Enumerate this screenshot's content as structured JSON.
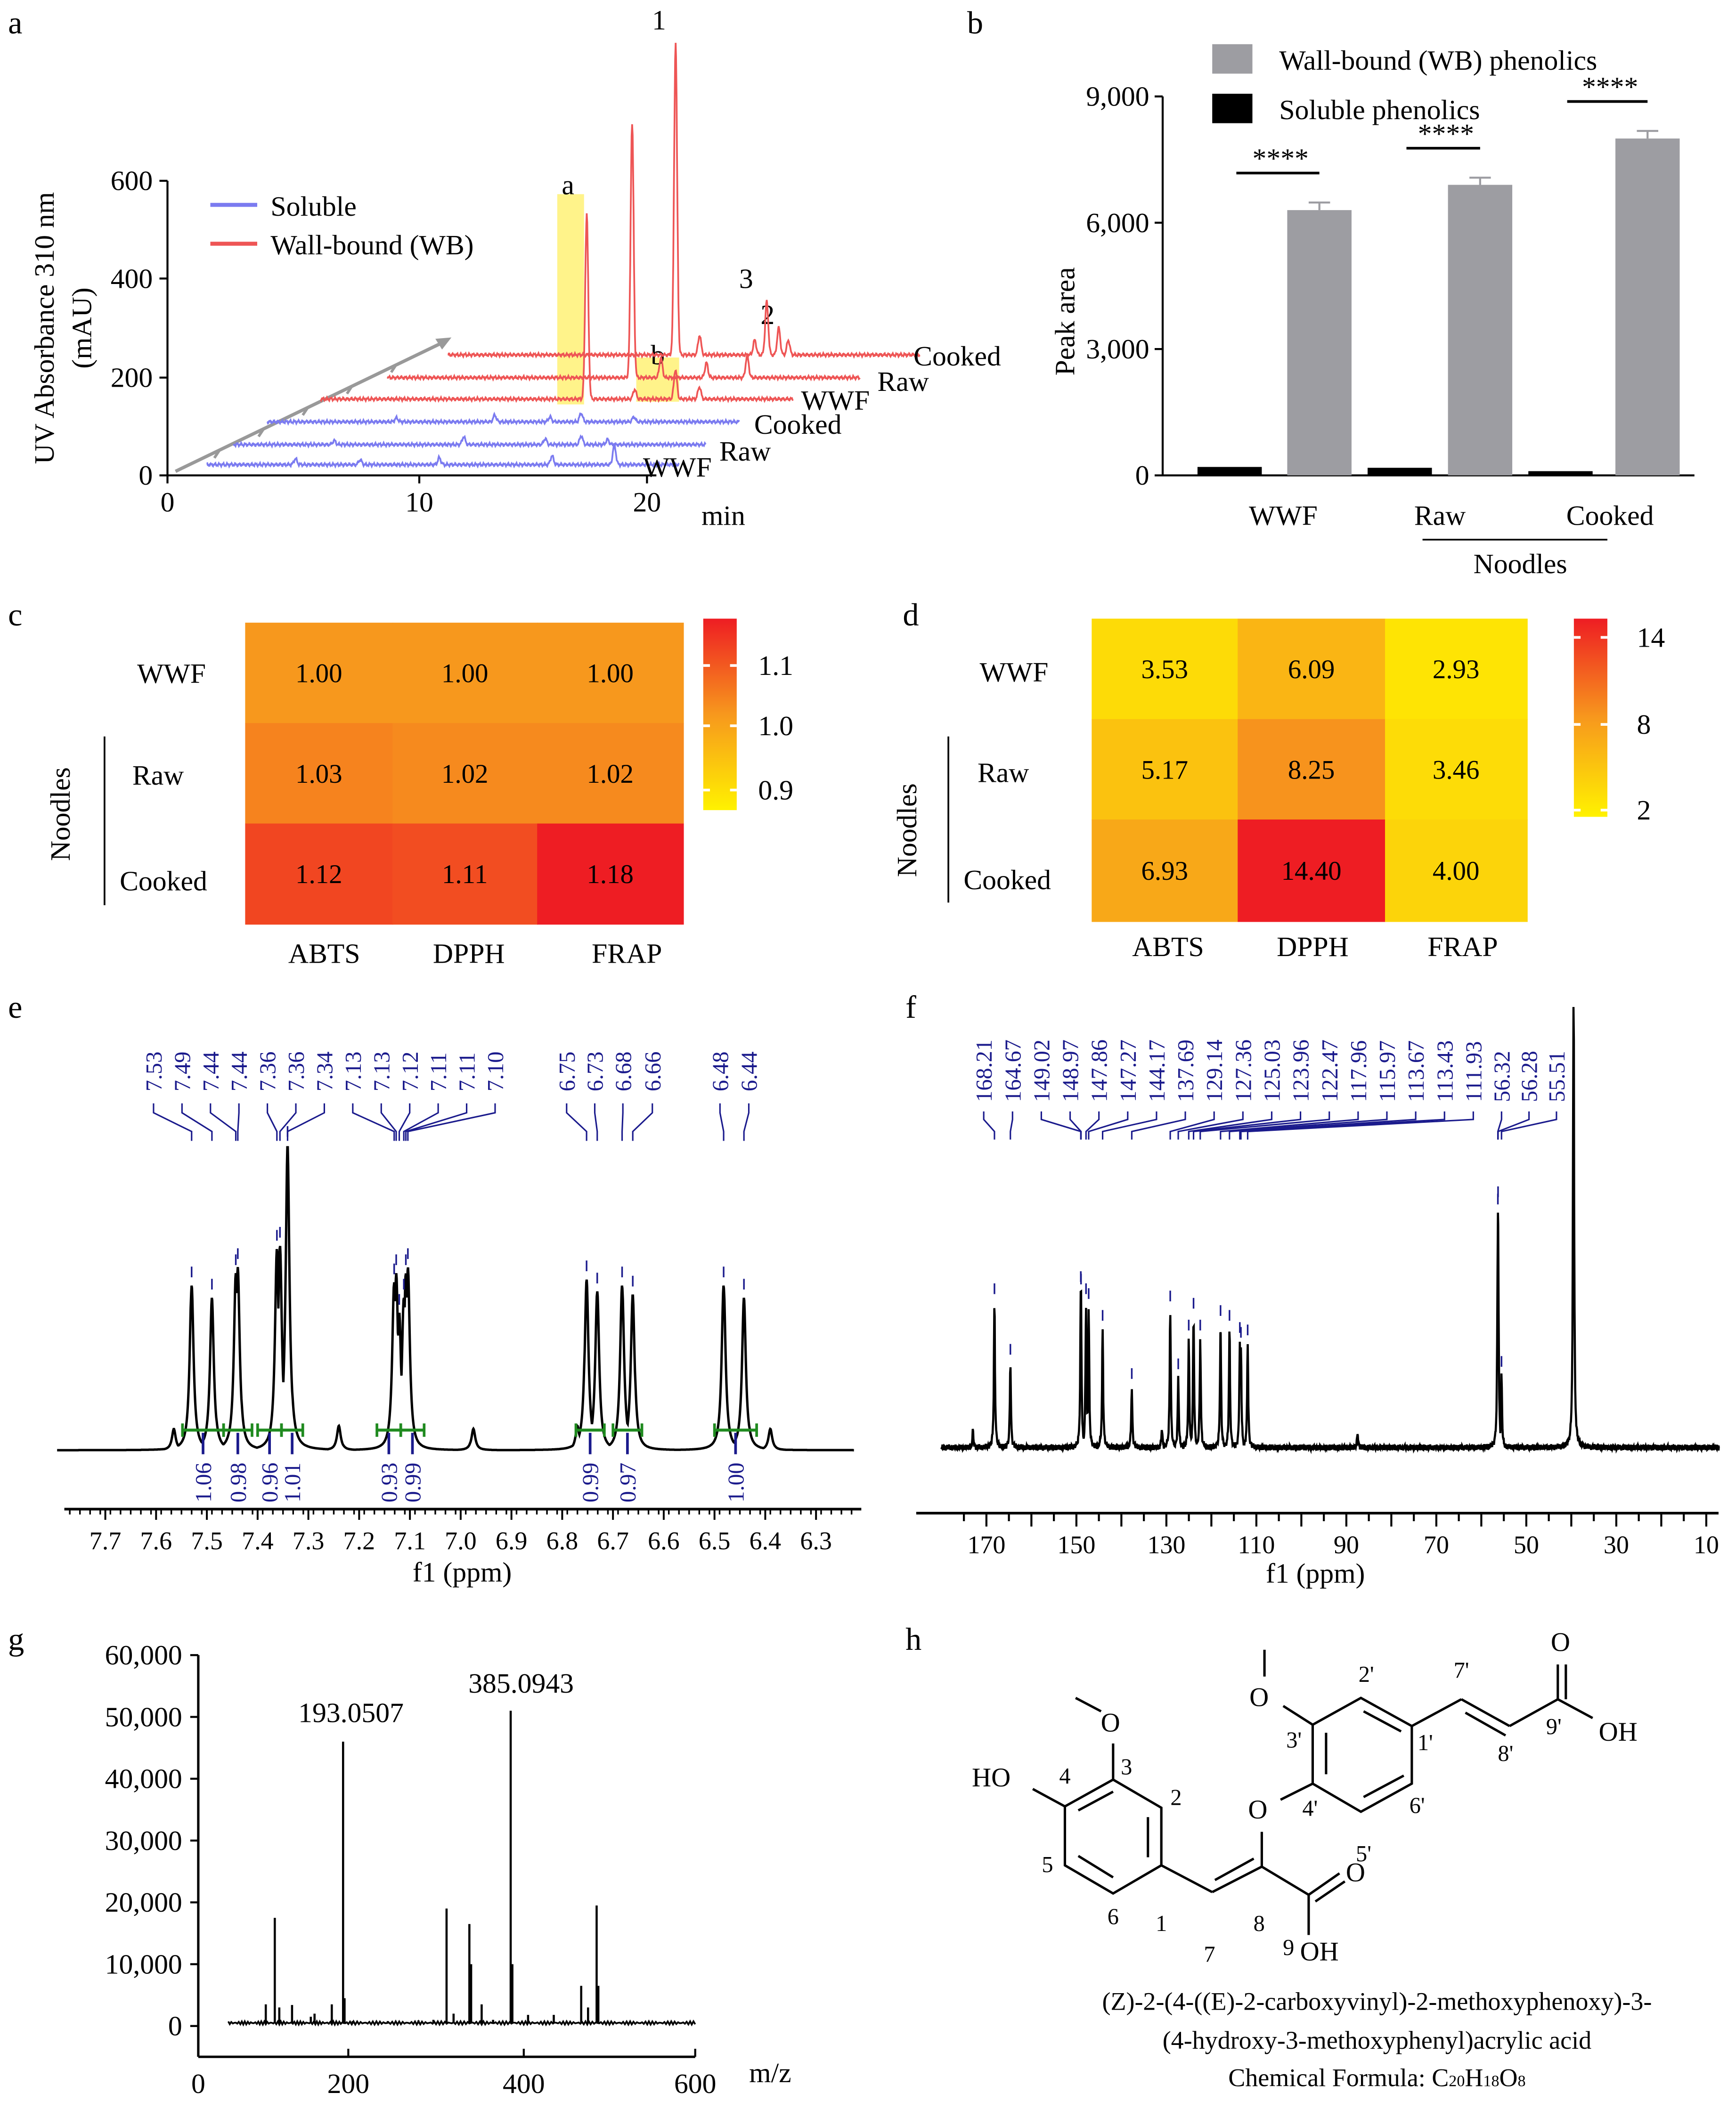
{
  "panel_labels": {
    "a": "a",
    "b": "b",
    "c": "c",
    "d": "d",
    "e": "e",
    "f": "f",
    "g": "g",
    "h": "h"
  },
  "chart_data": [
    {
      "id": "a",
      "type": "line",
      "ylabel_line1": "UV Absorbance 310 nm",
      "ylabel_line2": "(mAU)",
      "xlabel": "min",
      "yticks": [
        "0",
        "200",
        "400",
        "600"
      ],
      "xticks": [
        "0",
        "10",
        "20"
      ],
      "ylim": [
        0,
        600
      ],
      "legend": [
        {
          "name": "Soluble",
          "color": "#7b7bf0"
        },
        {
          "name": "Wall-bound (WB)",
          "color": "#ee5555"
        }
      ],
      "legend_position": "top-left",
      "series": [
        {
          "group": "Soluble",
          "label": "WWF",
          "peaks": [
            [
              4.5,
              12
            ],
            [
              7.2,
              10
            ],
            [
              10.5,
              14
            ],
            [
              15.2,
              18
            ],
            [
              17.8,
              40
            ]
          ]
        },
        {
          "group": "Soluble",
          "label": "Raw",
          "peaks": [
            [
              5.0,
              8
            ],
            [
              10.4,
              16
            ],
            [
              13.8,
              12
            ],
            [
              15.3,
              18
            ],
            [
              16.4,
              10
            ]
          ]
        },
        {
          "group": "Soluble",
          "label": "Cooked",
          "peaks": [
            [
              6.2,
              8
            ],
            [
              10.3,
              14
            ],
            [
              12.6,
              10
            ],
            [
              13.9,
              18
            ],
            [
              16.1,
              10
            ]
          ]
        },
        {
          "group": "Wall-bound (WB)",
          "label": "WWF",
          "peaks": [
            [
              11.9,
              376
            ],
            [
              13.9,
              20
            ],
            [
              15.6,
              60
            ],
            [
              16.6,
              25
            ]
          ]
        },
        {
          "group": "Wall-bound (WB)",
          "label": "Raw",
          "peaks": [
            [
              11.0,
              518
            ],
            [
              12.2,
              40
            ],
            [
              14.1,
              30
            ],
            [
              15.8,
              45
            ]
          ]
        },
        {
          "group": "Wall-bound (WB)",
          "label": "Cooked",
          "peaks": [
            [
              10.3,
              635
            ],
            [
              11.3,
              40
            ],
            [
              13.6,
              30
            ],
            [
              14.1,
              109
            ],
            [
              14.6,
              55
            ],
            [
              15.0,
              30
            ]
          ]
        }
      ],
      "annotations": [
        "1",
        "a",
        "b",
        "3",
        "2"
      ],
      "highlight_color": "#fff176"
    },
    {
      "id": "b",
      "type": "bar",
      "ylabel": "Peak area",
      "categories": [
        "WWF",
        "Raw",
        "Cooked"
      ],
      "group_label": "Noodles",
      "ylim": [
        0,
        9000
      ],
      "yticks": [
        "0",
        "3,000",
        "6,000",
        "9,000"
      ],
      "ytick_values": [
        0,
        3000,
        6000,
        9000
      ],
      "series": [
        {
          "name": "Soluble phenolics",
          "color": "#000000",
          "values": [
            200,
            180,
            100
          ],
          "errors": [
            20,
            20,
            15
          ]
        },
        {
          "name": "Wall-bound (WB) phenolics",
          "color": "#9d9da2",
          "values": [
            6300,
            6900,
            8000
          ],
          "errors": [
            180,
            170,
            180
          ]
        }
      ],
      "significance": [
        "****",
        "****",
        "****"
      ],
      "legend_position": "top"
    },
    {
      "id": "c",
      "type": "heatmap",
      "rows": [
        "WWF",
        "Raw",
        "Cooked"
      ],
      "row_group_label": "Noodles",
      "columns": [
        "ABTS",
        "DPPH",
        "FRAP"
      ],
      "values": [
        [
          "1.00",
          "1.00",
          "1.00"
        ],
        [
          "1.03",
          "1.02",
          "1.02"
        ],
        [
          "1.12",
          "1.11",
          "1.18"
        ]
      ],
      "colorbar_ticks": [
        "1.1",
        "1.0",
        "0.9"
      ],
      "colorbar_range": [
        0.9,
        1.18
      ],
      "colors": {
        "low": "#fff200",
        "mid": "#f7981d",
        "high": "#ee1d23"
      }
    },
    {
      "id": "d",
      "type": "heatmap",
      "rows": [
        "WWF",
        "Raw",
        "Cooked"
      ],
      "row_group_label": "Noodles",
      "columns": [
        "ABTS",
        "DPPH",
        "FRAP"
      ],
      "values": [
        [
          "3.53",
          "6.09",
          "2.93"
        ],
        [
          "5.17",
          "8.25",
          "3.46"
        ],
        [
          "6.93",
          "14.40",
          "4.00"
        ]
      ],
      "colorbar_ticks": [
        "14",
        "8",
        "2"
      ],
      "colorbar_range": [
        2,
        14
      ],
      "colors": {
        "low": "#fff200",
        "mid": "#f7981d",
        "high": "#ee1d23"
      }
    },
    {
      "id": "e",
      "type": "line",
      "xlabel": "f1 (ppm)",
      "xlim": [
        7.795,
        6.225
      ],
      "xticks": [
        "7.7",
        "7.6",
        "7.5",
        "7.4",
        "7.3",
        "7.2",
        "7.1",
        "7.0",
        "6.9",
        "6.8",
        "6.7",
        "6.6",
        "6.5",
        "6.4",
        "6.3"
      ],
      "peak_labels": [
        "7.53",
        "7.49",
        "7.44",
        "7.44",
        "7.36",
        "7.36",
        "7.34",
        "7.13",
        "7.13",
        "7.12",
        "7.11",
        "7.11",
        "7.10",
        "6.75",
        "6.73",
        "6.68",
        "6.66",
        "6.48",
        "6.44"
      ],
      "peaks": [
        [
          7.53,
          0.54
        ],
        [
          7.49,
          0.5
        ],
        [
          7.443,
          0.58
        ],
        [
          7.439,
          0.6
        ],
        [
          7.362,
          0.66
        ],
        [
          7.356,
          0.67
        ],
        [
          7.341,
          1.0
        ],
        [
          7.131,
          0.55
        ],
        [
          7.127,
          0.58
        ],
        [
          7.121,
          0.45
        ],
        [
          7.112,
          0.5
        ],
        [
          7.108,
          0.58
        ],
        [
          7.104,
          0.6
        ],
        [
          6.752,
          0.56
        ],
        [
          6.731,
          0.52
        ],
        [
          6.682,
          0.54
        ],
        [
          6.661,
          0.51
        ],
        [
          6.482,
          0.54
        ],
        [
          6.442,
          0.5
        ]
      ],
      "minor_peaks": [
        [
          7.565,
          0.07
        ],
        [
          7.24,
          0.08
        ],
        [
          6.975,
          0.07
        ],
        [
          6.77,
          0.08
        ],
        [
          6.39,
          0.07
        ]
      ],
      "integrals": [
        {
          "from": 7.548,
          "to": 7.467,
          "value": "1.06"
        },
        {
          "from": 7.467,
          "to": 7.411,
          "value": "0.98"
        },
        {
          "from": 7.4,
          "to": 7.353,
          "value": "0.96"
        },
        {
          "from": 7.353,
          "to": 7.311,
          "value": "1.01"
        },
        {
          "from": 7.165,
          "to": 7.118,
          "value": "0.93"
        },
        {
          "from": 7.118,
          "to": 7.072,
          "value": "0.99"
        },
        {
          "from": 6.773,
          "to": 6.717,
          "value": "0.99"
        },
        {
          "from": 6.7,
          "to": 6.643,
          "value": "0.97"
        },
        {
          "from": 6.5,
          "to": 6.417,
          "value": "1.00"
        }
      ],
      "label_color": "#1a1a8c",
      "integral_color": "#1f8a1f"
    },
    {
      "id": "f",
      "type": "line",
      "xlabel": "f1 (ppm)",
      "xlim": [
        180,
        7
      ],
      "xticks": [
        "170",
        "150",
        "130",
        "110",
        "90",
        "70",
        "50",
        "30",
        "10"
      ],
      "peak_labels": [
        "168.21",
        "164.67",
        "149.02",
        "148.97",
        "147.86",
        "147.27",
        "144.17",
        "137.69",
        "129.14",
        "127.36",
        "125.03",
        "123.96",
        "122.47",
        "117.96",
        "115.97",
        "113.67",
        "113.43",
        "111.93",
        "56.32",
        "56.28",
        "55.51"
      ],
      "peaks": [
        [
          168.21,
          0.6
        ],
        [
          164.67,
          0.35
        ],
        [
          149.02,
          0.65
        ],
        [
          148.97,
          0.64
        ],
        [
          147.86,
          0.6
        ],
        [
          147.27,
          0.58
        ],
        [
          144.17,
          0.49
        ],
        [
          137.69,
          0.25
        ],
        [
          129.14,
          0.57
        ],
        [
          127.36,
          0.29
        ],
        [
          125.03,
          0.45
        ],
        [
          123.96,
          0.54
        ],
        [
          122.47,
          0.45
        ],
        [
          117.96,
          0.51
        ],
        [
          115.97,
          0.49
        ],
        [
          113.67,
          0.44
        ],
        [
          113.43,
          0.42
        ],
        [
          111.93,
          0.43
        ],
        [
          56.32,
          0.97
        ],
        [
          56.28,
          1.0
        ],
        [
          55.51,
          0.3
        ]
      ],
      "unlabeled_peaks": [
        [
          39.5,
          2.0
        ],
        [
          87.5,
          0.06
        ],
        [
          131.0,
          0.08
        ],
        [
          173.0,
          0.07
        ]
      ],
      "label_color": "#1a1a8c"
    },
    {
      "id": "g",
      "type": "bar",
      "xlabel": "m/z",
      "xlim": [
        0,
        600
      ],
      "ylim": [
        0,
        60000
      ],
      "xticks": [
        "0",
        "200",
        "400",
        "600"
      ],
      "yticks": [
        "0",
        "10,000",
        "20,000",
        "30,000",
        "40,000",
        "50,000",
        "60,000"
      ],
      "peak_labels": [
        "193.0507",
        "385.0943"
      ],
      "peaks": [
        [
          90,
          3500
        ],
        [
          102,
          17500
        ],
        [
          108,
          3000
        ],
        [
          125,
          3400
        ],
        [
          150,
          1500
        ],
        [
          155,
          2000
        ],
        [
          178,
          3500
        ],
        [
          193.05,
          46000
        ],
        [
          195,
          4500
        ],
        [
          205,
          800
        ],
        [
          245,
          800
        ],
        [
          280,
          900
        ],
        [
          297,
          1000
        ],
        [
          312,
          19000
        ],
        [
          320,
          2000
        ],
        [
          338,
          16500
        ],
        [
          340,
          10000
        ],
        [
          352,
          3500
        ],
        [
          365,
          1000
        ],
        [
          385.09,
          51000
        ],
        [
          387,
          10000
        ],
        [
          405,
          1800
        ],
        [
          435,
          1800
        ],
        [
          467,
          6500
        ],
        [
          475,
          3000
        ],
        [
          485,
          19500
        ],
        [
          487,
          6500
        ]
      ]
    }
  ],
  "structure": {
    "atoms": {
      "ho": "HO",
      "o_me_a": "O",
      "o_ether": "O",
      "o_me_b": "O",
      "o_c9": "O",
      "oh_c9": "OH",
      "o_c9p": "O",
      "oh_c9p": "OH"
    },
    "numbers": {
      "n1": "1",
      "n2": "2",
      "n3": "3",
      "n4": "4",
      "n5": "5",
      "n6": "6",
      "n7": "7",
      "n8": "8",
      "n9": "9",
      "n1p": "1'",
      "n2p": "2'",
      "n3p": "3'",
      "n4p": "4'",
      "n5p": "5'",
      "n6p": "6'",
      "n7p": "7'",
      "n8p": "8'",
      "n9p": "9'"
    },
    "name_line1": "(Z)-2-(4-((E)-2-carboxyvinyl)-2-methoxyphenoxy)-3-",
    "name_line2": "(4-hydroxy-3-methoxyphenyl)acrylic acid",
    "formula_prefix": "Chemical Formula: C",
    "formula_c": "20",
    "formula_h": "H",
    "formula_hn": "18",
    "formula_o": "O",
    "formula_on": "8"
  }
}
